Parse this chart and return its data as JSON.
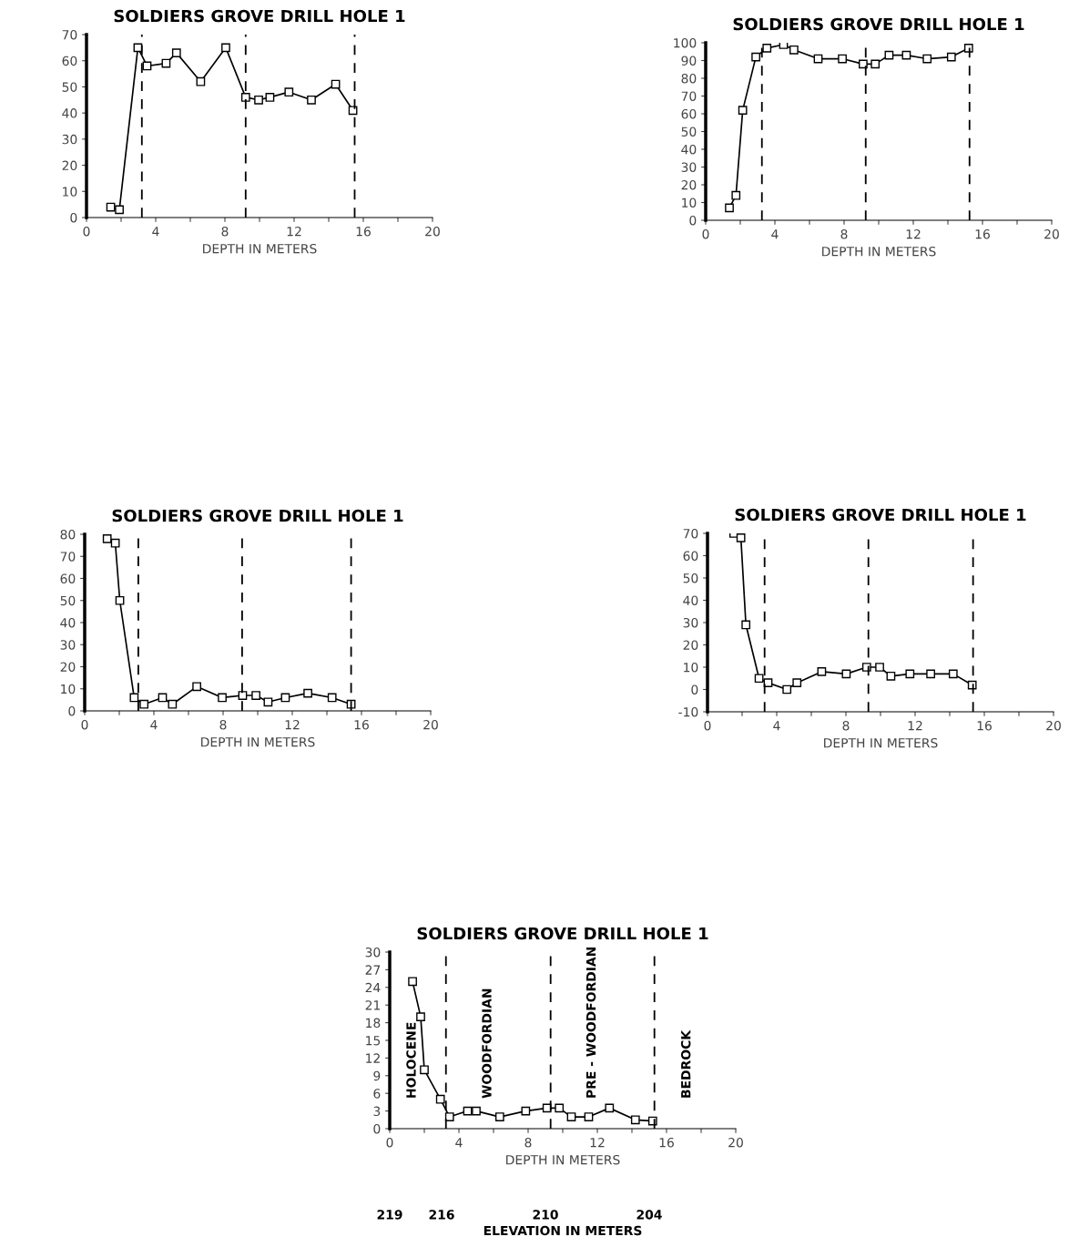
{
  "chart_data": [
    {
      "type": "line",
      "title": "SOLDIERS GROVE DRILL HOLE 1",
      "xlabel": "DEPTH IN METERS",
      "marker": "square",
      "line_style": "solid",
      "grid": false,
      "legend": false,
      "x": [
        1.4,
        1.9,
        2.97,
        3.5,
        4.6,
        5.2,
        6.6,
        8.05,
        9.2,
        9.95,
        10.6,
        11.7,
        13.0,
        14.4,
        15.4
      ],
      "series": [
        {
          "color": "#000000",
          "values": [
            4,
            3,
            65,
            58,
            59,
            63,
            52,
            65,
            46,
            45,
            46,
            48,
            45,
            51,
            41
          ]
        }
      ],
      "xlim": [
        0,
        20
      ],
      "xticks": [
        0,
        {
          "value": 2,
          "label": null
        },
        4,
        {
          "value": 6,
          "label": null
        },
        8,
        {
          "value": 10,
          "label": null
        },
        12,
        {
          "value": 14,
          "label": null
        },
        16,
        {
          "value": 18,
          "label": null
        },
        20
      ],
      "ylim": [
        0,
        70
      ],
      "yticks": [
        0,
        10,
        20,
        30,
        40,
        50,
        60,
        70
      ],
      "ref_lines": [
        {
          "axis": "x",
          "value": 3.2,
          "color": "#000000",
          "line_style": "dashed"
        },
        {
          "axis": "x",
          "value": 9.2,
          "color": "#000000",
          "line_style": "dashed"
        },
        {
          "axis": "x",
          "value": 15.5,
          "color": "#000000",
          "line_style": "dashed"
        }
      ]
    },
    {
      "type": "line",
      "title": "SOLDIERS GROVE DRILL HOLE 1",
      "xlabel": "DEPTH IN METERS",
      "marker": "square",
      "line_style": "solid",
      "grid": false,
      "legend": false,
      "x": [
        1.37,
        1.75,
        2.14,
        2.9,
        3.54,
        4.5,
        5.1,
        6.5,
        7.9,
        9.1,
        9.8,
        10.6,
        11.6,
        12.8,
        14.2,
        15.2
      ],
      "series": [
        {
          "color": "#000000",
          "values": [
            7,
            14,
            62,
            92,
            97,
            99,
            96,
            91,
            91,
            88,
            88,
            93,
            93,
            91,
            92,
            97
          ]
        }
      ],
      "xlim": [
        0,
        20
      ],
      "xticks": [
        0,
        {
          "value": 2,
          "label": null
        },
        4,
        {
          "value": 6,
          "label": null
        },
        8,
        {
          "value": 10,
          "label": null
        },
        12,
        {
          "value": 14,
          "label": null
        },
        16,
        {
          "value": 18,
          "label": null
        },
        20
      ],
      "ylim": [
        0,
        100
      ],
      "yticks": [
        0,
        10,
        20,
        30,
        40,
        50,
        60,
        70,
        80,
        90,
        100
      ],
      "ref_lines": [
        {
          "axis": "x",
          "value": 3.25,
          "color": "#000000",
          "line_style": "dashed"
        },
        {
          "axis": "x",
          "value": 9.25,
          "color": "#000000",
          "line_style": "dashed"
        },
        {
          "axis": "x",
          "value": 15.25,
          "color": "#000000",
          "line_style": "dashed"
        }
      ]
    },
    {
      "type": "line",
      "title": "SOLDIERS GROVE DRILL HOLE 1",
      "xlabel": "DEPTH IN METERS",
      "marker": "square",
      "line_style": "solid",
      "grid": false,
      "legend": false,
      "x": [
        1.3,
        1.77,
        2.03,
        2.86,
        3.43,
        4.5,
        5.07,
        6.48,
        7.95,
        9.13,
        9.9,
        10.6,
        11.6,
        12.9,
        14.3,
        15.4
      ],
      "series": [
        {
          "color": "#000000",
          "values": [
            78,
            76,
            50,
            6,
            3,
            6,
            3,
            11,
            6,
            7,
            7,
            4,
            6,
            8,
            6,
            3
          ]
        }
      ],
      "xlim": [
        0,
        20
      ],
      "xticks": [
        0,
        {
          "value": 2,
          "label": null
        },
        4,
        {
          "value": 6,
          "label": null
        },
        8,
        {
          "value": 10,
          "label": null
        },
        12,
        {
          "value": 14,
          "label": null
        },
        16,
        {
          "value": 18,
          "label": null
        },
        20
      ],
      "ylim": [
        0,
        80
      ],
      "yticks": [
        0,
        10,
        20,
        30,
        40,
        50,
        60,
        70,
        80
      ],
      "ref_lines": [
        {
          "axis": "x",
          "value": 3.1,
          "color": "#000000",
          "line_style": "dashed"
        },
        {
          "axis": "x",
          "value": 9.1,
          "color": "#000000",
          "line_style": "dashed"
        },
        {
          "axis": "x",
          "value": 15.4,
          "color": "#000000",
          "line_style": "dashed"
        }
      ]
    },
    {
      "type": "line",
      "title": "SOLDIERS GROVE DRILL HOLE 1",
      "xlabel": "DEPTH IN METERS",
      "marker": "square",
      "line_style": "solid",
      "grid": false,
      "legend": false,
      "x": [
        1.52,
        1.93,
        2.22,
        2.98,
        3.5,
        4.59,
        5.17,
        6.6,
        8.02,
        9.2,
        9.95,
        10.6,
        11.7,
        12.9,
        14.2,
        15.3
      ],
      "series": [
        {
          "color": "#000000",
          "values": [
            70,
            68,
            29,
            5,
            3,
            0,
            3,
            8,
            7,
            10,
            10,
            6,
            7,
            7,
            7,
            2
          ]
        }
      ],
      "xlim": [
        0,
        20
      ],
      "xticks": [
        0,
        {
          "value": 2,
          "label": null
        },
        4,
        {
          "value": 6,
          "label": null
        },
        8,
        {
          "value": 10,
          "label": null
        },
        12,
        {
          "value": 14,
          "label": null
        },
        16,
        {
          "value": 18,
          "label": null
        },
        20
      ],
      "ylim": [
        -10,
        70
      ],
      "yticks": [
        -10,
        0,
        10,
        20,
        30,
        40,
        50,
        60,
        70
      ],
      "ref_lines": [
        {
          "axis": "x",
          "value": 3.3,
          "color": "#000000",
          "line_style": "dashed"
        },
        {
          "axis": "x",
          "value": 9.3,
          "color": "#000000",
          "line_style": "dashed"
        },
        {
          "axis": "x",
          "value": 15.35,
          "color": "#000000",
          "line_style": "dashed"
        }
      ]
    },
    {
      "type": "line",
      "title": "SOLDIERS GROVE DRILL HOLE 1",
      "xlabel": "DEPTH IN METERS",
      "x2label": "ELEVATION IN METERS",
      "marker": "square",
      "line_style": "solid",
      "grid": false,
      "legend": false,
      "x": [
        1.32,
        1.79,
        2.0,
        2.93,
        3.46,
        4.5,
        5.0,
        6.36,
        7.86,
        9.09,
        9.8,
        10.5,
        11.5,
        12.7,
        14.2,
        15.2
      ],
      "series": [
        {
          "color": "#000000",
          "values": [
            25,
            19,
            10,
            5,
            2,
            3,
            3,
            2,
            3,
            3.5,
            3.5,
            2,
            2,
            3.5,
            1.5,
            1.3
          ]
        }
      ],
      "xlim": [
        0,
        20
      ],
      "xticks": [
        0,
        {
          "value": 2,
          "label": null
        },
        4,
        {
          "value": 6,
          "label": null
        },
        8,
        {
          "value": 10,
          "label": null
        },
        12,
        {
          "value": 14,
          "label": null
        },
        16,
        {
          "value": 18,
          "label": null
        },
        20
      ],
      "x2lim": [
        219,
        199
      ],
      "x2ticks": [
        219,
        216,
        210,
        204
      ],
      "ylim": [
        0,
        30
      ],
      "yticks": [
        0,
        3,
        6,
        9,
        12,
        15,
        18,
        21,
        24,
        27,
        30
      ],
      "ref_lines": [
        {
          "axis": "x",
          "value": 3.25,
          "color": "#000000",
          "line_style": "dashed"
        },
        {
          "axis": "x",
          "value": 9.3,
          "color": "#000000",
          "line_style": "dashed"
        },
        {
          "axis": "x",
          "value": 15.3,
          "color": "#000000",
          "line_style": "dashed"
        }
      ],
      "annotations": [
        "HOLOCENE",
        "WOODFORDIAN",
        "PRE - WOODFORDIAN",
        "BEDROCK"
      ]
    }
  ]
}
